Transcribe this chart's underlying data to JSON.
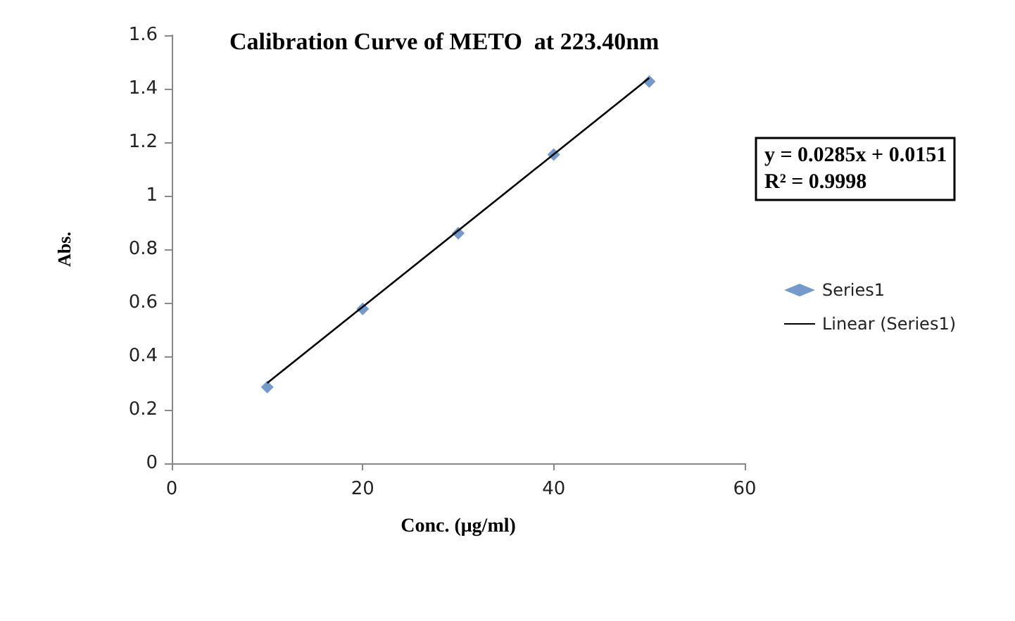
{
  "chart_data": {
    "type": "scatter",
    "title": "Calibration Curve of METO  at 223.40nm",
    "xlabel": "Conc. (μg/ml)",
    "ylabel": "Abs.",
    "x": [
      10,
      20,
      30,
      40,
      50
    ],
    "series": [
      {
        "name": "Series1",
        "color": "#4f81bd",
        "marker": "diamond",
        "values": [
          0.285,
          0.577,
          0.86,
          1.154,
          1.427
        ]
      },
      {
        "name": "Linear (Series1)",
        "type": "line",
        "marker": "none",
        "color": "#000000",
        "x": [
          10,
          50
        ],
        "values": [
          0.3,
          1.44
        ]
      }
    ],
    "annotations": [
      "y = 0.0285x + 0.0151",
      "R² = 0.9998"
    ],
    "xlim": [
      0,
      60
    ],
    "xticks": [
      0,
      20,
      40,
      60
    ],
    "ylim": [
      0,
      1.6
    ],
    "yticks": [
      0,
      0.2,
      0.4,
      0.6,
      0.8,
      1,
      1.2,
      1.4,
      1.6
    ],
    "grid": false,
    "legend": "right",
    "line_style": "solid"
  }
}
